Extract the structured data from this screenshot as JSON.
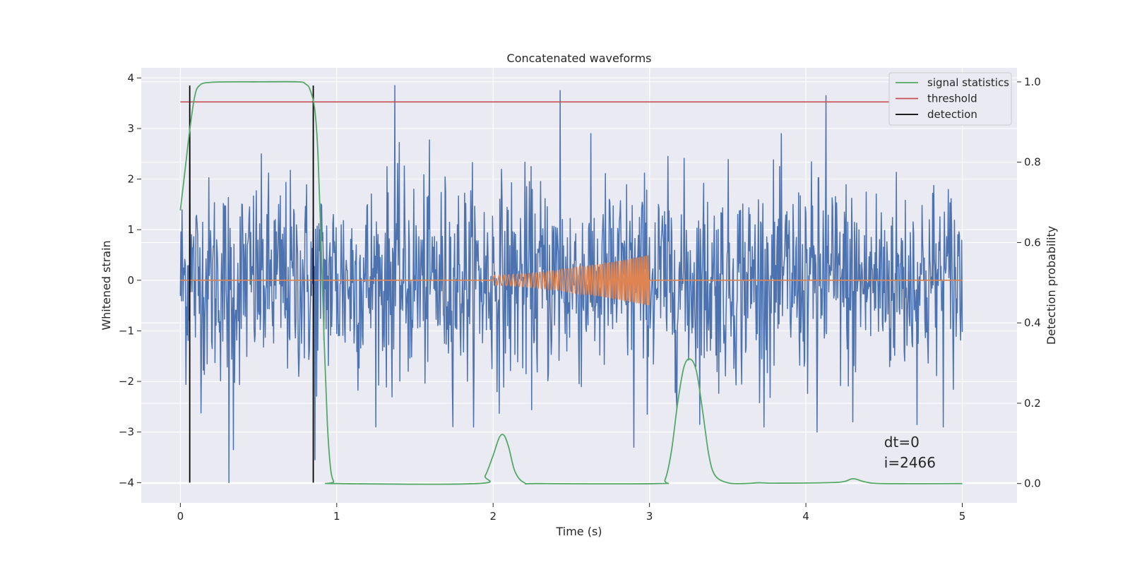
{
  "chart_data": {
    "type": "line",
    "title": "Concatenated waveforms",
    "xlabel": "Time (s)",
    "ylabel": "Whitened strain",
    "y2label": "Detection probability",
    "xlim": [
      -0.25,
      5.35
    ],
    "ylim": [
      -4.4,
      4.2
    ],
    "y2lim": [
      -0.048,
      1.035
    ],
    "xticks": [
      0,
      1,
      2,
      3,
      4,
      5
    ],
    "yticks": [
      -4,
      -3,
      -2,
      -1,
      0,
      1,
      2,
      3,
      4
    ],
    "y2ticks": [
      0.0,
      0.2,
      0.4,
      0.6,
      0.8,
      1.0
    ],
    "y2tick_labels": [
      "0.0",
      "0.2",
      "0.4",
      "0.6",
      "0.8",
      "1.0"
    ],
    "grid": true,
    "legend_position": "top-right",
    "series": [
      {
        "name": "",
        "role": "whitened strain noise",
        "color": "#4c72b0",
        "x_range": [
          0,
          5
        ],
        "samples": 1400,
        "std": 1.0,
        "peaks": [
          {
            "x": 1.37,
            "y": 3.85
          },
          {
            "x": 2.43,
            "y": 3.75
          },
          {
            "x": 4.13,
            "y": 3.65
          },
          {
            "x": 0.06,
            "y": 3.1
          },
          {
            "x": 0.31,
            "y": -4.0
          },
          {
            "x": 0.34,
            "y": -3.35
          },
          {
            "x": 2.9,
            "y": -3.3
          },
          {
            "x": 4.07,
            "y": -3.0
          },
          {
            "x": 4.3,
            "y": -2.8
          },
          {
            "x": 0.86,
            "y": -3.55
          }
        ]
      },
      {
        "name": "",
        "role": "injected chirp",
        "color": "#dd8452",
        "x_range": [
          0,
          5
        ],
        "chirp": {
          "t_start": 2.0,
          "t_end": 3.0,
          "amp_start": 0.1,
          "amp_end": 0.5,
          "cycles": 55
        }
      },
      {
        "name": "signal statistics",
        "color": "#55a868",
        "axis": "right",
        "points": [
          [
            0.0,
            0.68
          ],
          [
            0.03,
            0.78
          ],
          [
            0.06,
            0.88
          ],
          [
            0.09,
            0.96
          ],
          [
            0.12,
            0.99
          ],
          [
            0.2,
            0.999
          ],
          [
            0.5,
            1.0
          ],
          [
            0.75,
            1.0
          ],
          [
            0.8,
            0.995
          ],
          [
            0.83,
            0.98
          ],
          [
            0.86,
            0.93
          ],
          [
            0.88,
            0.82
          ],
          [
            0.9,
            0.6
          ],
          [
            0.92,
            0.35
          ],
          [
            0.94,
            0.15
          ],
          [
            0.96,
            0.04
          ],
          [
            0.98,
            0.005
          ],
          [
            1.0,
            0.0
          ],
          [
            1.9,
            0.0
          ],
          [
            1.95,
            0.02
          ],
          [
            2.0,
            0.07
          ],
          [
            2.04,
            0.115
          ],
          [
            2.07,
            0.12
          ],
          [
            2.1,
            0.09
          ],
          [
            2.14,
            0.03
          ],
          [
            2.2,
            0.002
          ],
          [
            2.3,
            0.0
          ],
          [
            3.05,
            0.0
          ],
          [
            3.1,
            0.01
          ],
          [
            3.14,
            0.08
          ],
          [
            3.18,
            0.2
          ],
          [
            3.22,
            0.29
          ],
          [
            3.26,
            0.31
          ],
          [
            3.3,
            0.28
          ],
          [
            3.34,
            0.18
          ],
          [
            3.38,
            0.07
          ],
          [
            3.42,
            0.02
          ],
          [
            3.5,
            0.002
          ],
          [
            3.6,
            0.0
          ],
          [
            3.7,
            0.002
          ],
          [
            3.8,
            0.001
          ],
          [
            4.2,
            0.003
          ],
          [
            4.3,
            0.012
          ],
          [
            4.38,
            0.004
          ],
          [
            4.5,
            0.0
          ],
          [
            5.0,
            0.0
          ]
        ]
      },
      {
        "name": "threshold",
        "color": "#c44e52",
        "axis": "right",
        "value": 0.95,
        "x_range": [
          0,
          5.1
        ]
      },
      {
        "name": "detection",
        "color": "#000000",
        "x_values": [
          0.06,
          0.85
        ],
        "y_range": [
          -4.0,
          3.85
        ]
      }
    ],
    "annotations": [
      {
        "text": "dt=0",
        "x": 4.5,
        "y": -3.3
      },
      {
        "text": "i=2466",
        "x": 4.5,
        "y": -3.7
      }
    ]
  }
}
